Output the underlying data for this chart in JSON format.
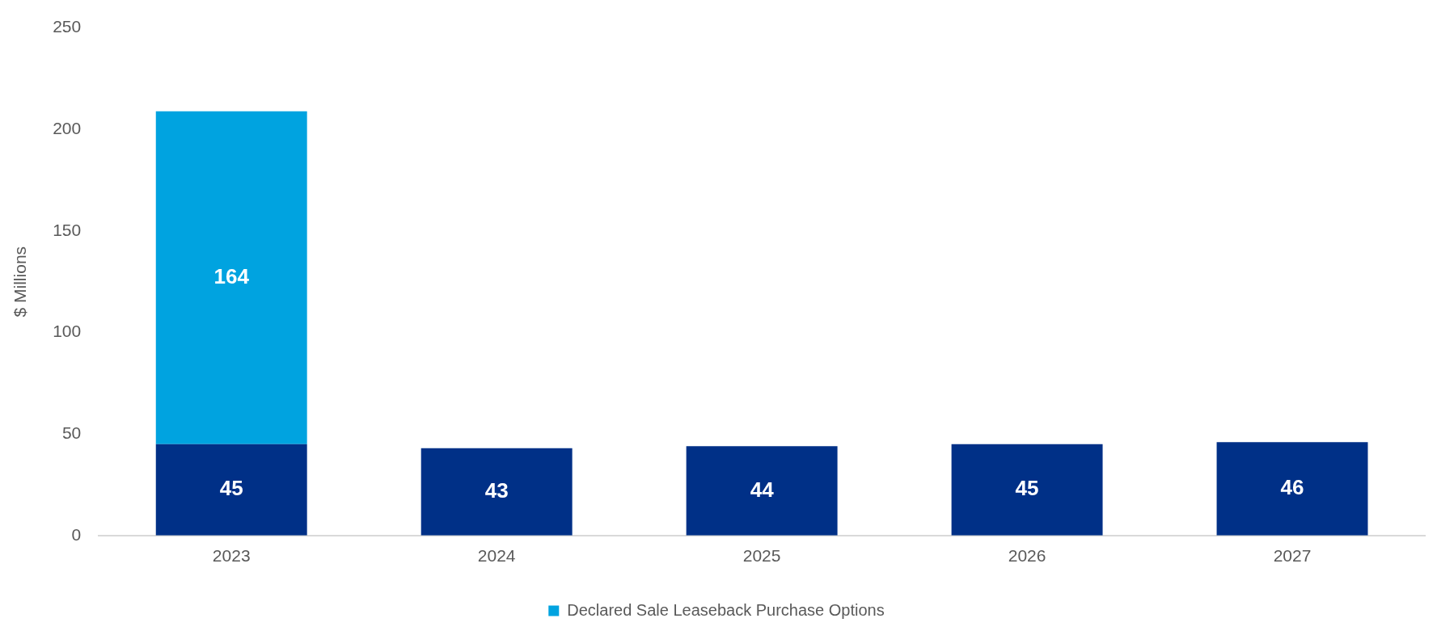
{
  "chart_data": {
    "type": "bar",
    "stacked": true,
    "ylabel": "$ Millions",
    "categories": [
      "2023",
      "2024",
      "2025",
      "2026",
      "2027"
    ],
    "series": [
      {
        "color": "#003087",
        "values": [
          45,
          43,
          44,
          45,
          46
        ]
      },
      {
        "name": "Declared Sale Leaseback Purchase Options",
        "color": "#00a3e0",
        "values": [
          164,
          null,
          null,
          null,
          null
        ]
      }
    ],
    "ylim": [
      0,
      250
    ],
    "yticks": [
      0,
      50,
      100,
      150,
      200,
      250
    ],
    "grid": false,
    "legend": "bottom",
    "data_labels": true
  }
}
